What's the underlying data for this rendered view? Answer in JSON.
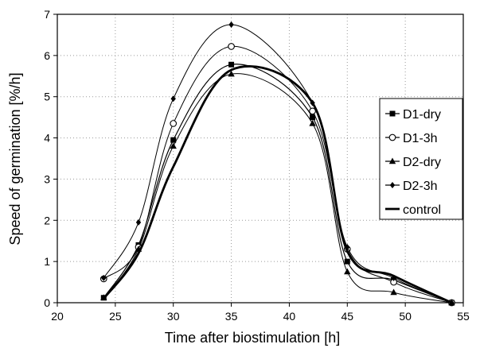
{
  "chart_data": {
    "type": "line",
    "xlabel": "Time after biostimulation [h]",
    "ylabel": "Speed of germination [%/h]",
    "xlim": [
      20,
      55
    ],
    "ylim": [
      0,
      7
    ],
    "xticks": [
      20,
      25,
      30,
      35,
      40,
      45,
      50,
      55
    ],
    "yticks": [
      0,
      1,
      2,
      3,
      4,
      5,
      6,
      7
    ],
    "grid": "dotted horizontal and vertical",
    "legend_position": "right",
    "x": [
      24,
      27,
      30,
      35,
      42,
      45,
      49,
      54
    ],
    "series": [
      {
        "name": "D1-dry",
        "marker": "square",
        "values": [
          0.12,
          1.4,
          3.95,
          5.78,
          4.5,
          1.0,
          0.55,
          0.0
        ]
      },
      {
        "name": "D1-3h",
        "marker": "circle-open",
        "values": [
          0.58,
          1.35,
          4.35,
          6.22,
          4.65,
          1.3,
          0.5,
          0.0
        ]
      },
      {
        "name": "D2-dry",
        "marker": "triangle",
        "values": [
          0.12,
          1.3,
          3.8,
          5.55,
          4.35,
          0.75,
          0.25,
          0.0
        ]
      },
      {
        "name": "D2-3h",
        "marker": "diamond",
        "values": [
          0.6,
          1.95,
          4.95,
          6.75,
          4.85,
          1.35,
          0.6,
          0.0
        ]
      },
      {
        "name": "control",
        "marker": "dash",
        "values": [
          0.1,
          1.2,
          3.3,
          5.65,
          4.85,
          1.25,
          0.65,
          0.0
        ]
      }
    ]
  }
}
